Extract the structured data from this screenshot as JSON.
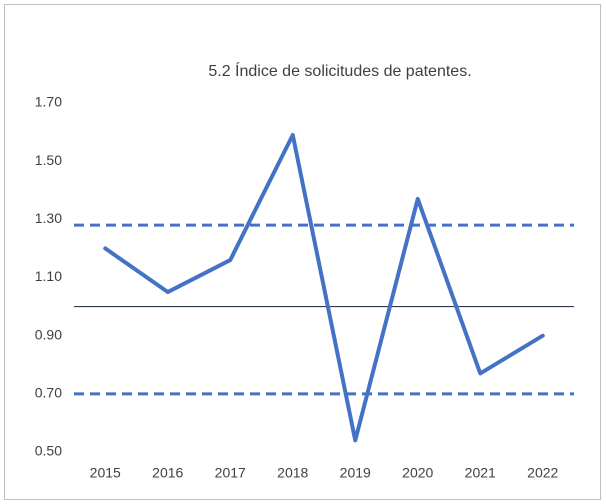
{
  "chart_data": {
    "type": "line",
    "title": "5.2 Índice de solicitudes de patentes.",
    "categories": [
      "2015",
      "2016",
      "2017",
      "2018",
      "2019",
      "2020",
      "2021",
      "2022"
    ],
    "series": [
      {
        "color": "#4472c4",
        "values": [
          1.2,
          1.05,
          1.16,
          1.59,
          0.54,
          1.37,
          0.77,
          0.9
        ]
      }
    ],
    "ylim": [
      0.5,
      1.7
    ],
    "yticks": [
      {
        "value": 0.5,
        "label": "0.50"
      },
      {
        "value": 0.7,
        "label": "0.70"
      },
      {
        "value": 0.9,
        "label": "0.90"
      },
      {
        "value": 1.1,
        "label": "1.10"
      },
      {
        "value": 1.3,
        "label": "1.30"
      },
      {
        "value": 1.5,
        "label": "1.50"
      },
      {
        "value": 1.7,
        "label": "1.70"
      }
    ],
    "reference_lines": [
      {
        "value": 1.28,
        "style": "dashed",
        "color": "#4472c4"
      },
      {
        "value": 1.0,
        "style": "solid",
        "color": "#2f3a4f"
      },
      {
        "value": 0.7,
        "style": "dashed",
        "color": "#4472c4"
      }
    ],
    "grid": false
  }
}
